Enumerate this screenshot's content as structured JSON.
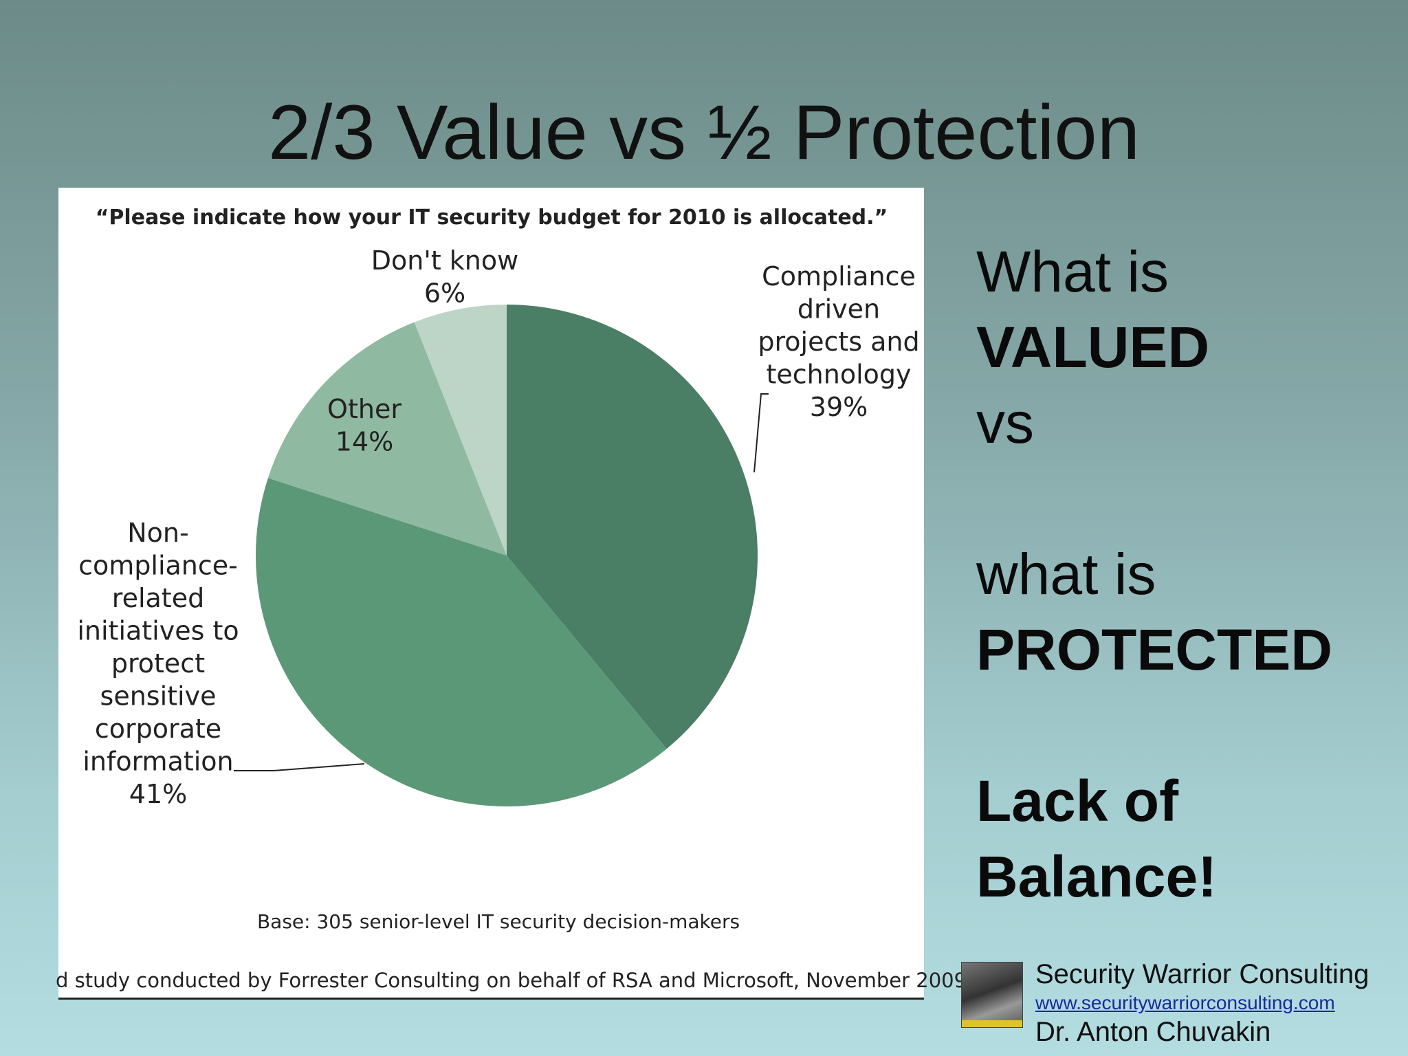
{
  "slide": {
    "title": "2/3 Value vs ½ Protection"
  },
  "right_text": {
    "line1": "What is",
    "line2": "VALUED",
    "line3": "vs",
    "line4": "what is",
    "line5": "PROTECTED",
    "line6": "Lack of",
    "line7": "Balance!"
  },
  "footer": {
    "company": "Security Warrior Consulting",
    "website": "www.securitywarriorconsulting.com",
    "author": "Dr. Anton Chuvakin"
  },
  "chart_data": {
    "type": "pie",
    "title": "“Please indicate how your IT security budget for 2010 is allocated.”",
    "base_note": "Base: 305 senior-level IT security decision-makers",
    "source_note": "d study conducted by Forrester Consulting on behalf of RSA and Microsoft, November 2009",
    "slices": [
      {
        "label_lines": [
          "Compliance",
          "driven",
          "projects and",
          "technology"
        ],
        "value_label": "39%",
        "value": 39,
        "color": "#4a7e65"
      },
      {
        "label_lines": [
          "Non-",
          "compliance-",
          "related",
          "initiatives to",
          "protect",
          "sensitive",
          "corporate",
          "information"
        ],
        "value_label": "41%",
        "value": 41,
        "color": "#5b9878"
      },
      {
        "label_lines": [
          "Other"
        ],
        "value_label": "14%",
        "value": 14,
        "color": "#8fb9a0"
      },
      {
        "label_lines": [
          "Don't know"
        ],
        "value_label": "6%",
        "value": 6,
        "color": "#bdd5c7"
      }
    ]
  }
}
